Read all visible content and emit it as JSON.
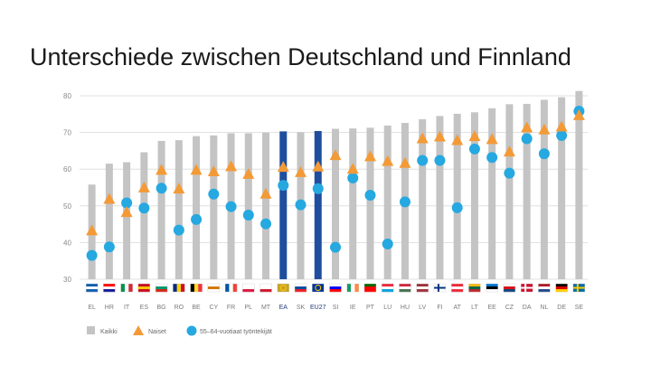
{
  "slide": {
    "title": "Unterschiede zwischen Deutschland und Finnland"
  },
  "chart_data": {
    "type": "bar",
    "title": "",
    "xlabel": "",
    "ylabel": "",
    "ylim": [
      30,
      82
    ],
    "yticks": [
      30,
      40,
      50,
      60,
      70,
      80
    ],
    "grid": true,
    "categories": [
      "EL",
      "HR",
      "IT",
      "ES",
      "BG",
      "RO",
      "BE",
      "CY",
      "FR",
      "PL",
      "MT",
      "EA",
      "SK",
      "EU27",
      "SI",
      "IE",
      "PT",
      "LU",
      "HU",
      "LV",
      "FI",
      "AT",
      "LT",
      "EE",
      "CZ",
      "DA",
      "NL",
      "DE",
      "SE"
    ],
    "highlighted": [
      "EA",
      "EU27"
    ],
    "series": [
      {
        "name": "Kaikki",
        "marker": "bar",
        "color": "#c4c4c4",
        "highlight_color": "#1f4e9e",
        "values": [
          55.8,
          61.5,
          61.9,
          64.6,
          67.7,
          67.9,
          69.0,
          69.2,
          69.8,
          69.8,
          70.0,
          70.3,
          70.1,
          70.4,
          71.0,
          71.1,
          71.3,
          71.9,
          72.6,
          73.6,
          74.5,
          75.1,
          75.5,
          76.6,
          77.7,
          77.8,
          78.9,
          79.6,
          81.3
        ]
      },
      {
        "name": "Naiset",
        "marker": "triangle",
        "color": "#f39a36",
        "values": [
          43.2,
          51.8,
          48.2,
          54.9,
          59.7,
          54.6,
          59.7,
          59.3,
          60.7,
          58.6,
          53.2,
          60.5,
          59.1,
          60.6,
          63.7,
          60.0,
          63.4,
          62.1,
          61.6,
          68.3,
          68.8,
          67.8,
          68.9,
          68.1,
          64.7,
          71.3,
          70.7,
          71.5,
          74.6
        ]
      },
      {
        "name": "55–64-vuotiaat työntekijät",
        "marker": "circle",
        "color": "#26a8e0",
        "values": [
          36.5,
          38.8,
          50.8,
          49.4,
          54.8,
          43.4,
          46.3,
          53.2,
          49.8,
          47.5,
          45.1,
          55.6,
          50.3,
          54.7,
          38.7,
          57.6,
          52.9,
          39.6,
          51.1,
          62.4,
          62.4,
          49.5,
          65.5,
          63.2,
          58.9,
          68.3,
          64.2,
          69.2,
          75.8
        ]
      }
    ]
  },
  "flags": {
    "EL": [
      "#0d5eaf",
      "#ffffff",
      "#0d5eaf"
    ],
    "HR": [
      "#ff0000",
      "#ffffff",
      "#171796"
    ],
    "IT": [
      "#009246",
      "#ffffff",
      "#ce2b37"
    ],
    "ES": [
      "#c60b1e",
      "#ffc400",
      "#c60b1e"
    ],
    "BG": [
      "#ffffff",
      "#00966e",
      "#d62612"
    ],
    "RO": [
      "#002b7f",
      "#fcd116",
      "#ce1126"
    ],
    "BE": [
      "#000000",
      "#fdda24",
      "#ef3340"
    ],
    "CY": [
      "#ffffff",
      "#d57800",
      "#ffffff"
    ],
    "FR": [
      "#0055a4",
      "#ffffff",
      "#ef4135"
    ],
    "PL": [
      "#ffffff",
      "#ffffff",
      "#dc143c"
    ],
    "MT": [
      "#ffffff",
      "#ffffff",
      "#cf142b"
    ],
    "EA": [
      "#c9a227",
      "#e9c84a",
      "#c9a227"
    ],
    "SK": [
      "#ffffff",
      "#0b4ea2",
      "#ee1c25"
    ],
    "EU27": [
      "#003399",
      "#003399",
      "#003399"
    ],
    "SI": [
      "#ffffff",
      "#0000ff",
      "#ff0000"
    ],
    "IE": [
      "#169b62",
      "#ffffff",
      "#ff883e"
    ],
    "PT": [
      "#006600",
      "#ff0000",
      "#ff0000"
    ],
    "LU": [
      "#ed2939",
      "#ffffff",
      "#00a1de"
    ],
    "HU": [
      "#cd2a3e",
      "#ffffff",
      "#436f4d"
    ],
    "LV": [
      "#9e3039",
      "#ffffff",
      "#9e3039"
    ],
    "FI": [
      "#ffffff",
      "#003580",
      "#ffffff"
    ],
    "AT": [
      "#ed2939",
      "#ffffff",
      "#ed2939"
    ],
    "LT": [
      "#fdb913",
      "#006a44",
      "#c1272d"
    ],
    "EE": [
      "#0072ce",
      "#000000",
      "#ffffff"
    ],
    "CZ": [
      "#ffffff",
      "#d7141a",
      "#11457e"
    ],
    "DA": [
      "#c8102e",
      "#ffffff",
      "#c8102e"
    ],
    "NL": [
      "#ae1c28",
      "#ffffff",
      "#21468b"
    ],
    "DE": [
      "#000000",
      "#dd0000",
      "#ffce00"
    ],
    "SE": [
      "#006aa7",
      "#fecc00",
      "#006aa7"
    ]
  }
}
